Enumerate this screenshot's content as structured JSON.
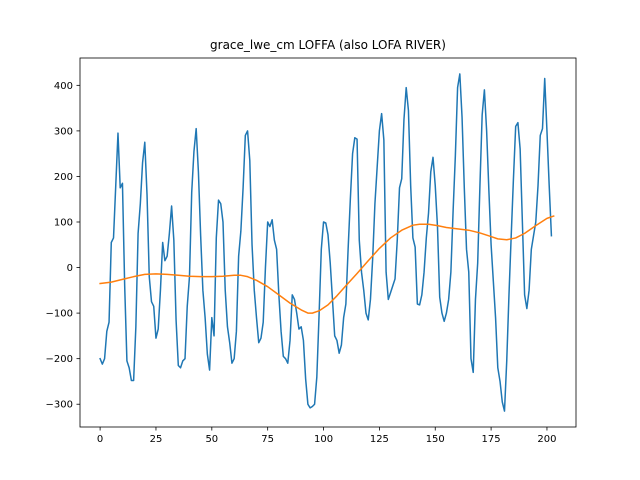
{
  "chart_data": {
    "type": "line",
    "title": "grace_lwe_cm LOFFA (also LOFA RIVER)",
    "xlabel": "",
    "ylabel": "",
    "xlim": [
      -9,
      213
    ],
    "ylim": [
      -350,
      460
    ],
    "xticks": [
      0,
      25,
      50,
      75,
      100,
      125,
      150,
      175,
      200
    ],
    "yticks": [
      -300,
      -200,
      -100,
      0,
      100,
      200,
      300,
      400
    ],
    "grid": false,
    "legend": "none",
    "series": [
      {
        "color": "#1f77b4",
        "points": [
          [
            0,
            -200
          ],
          [
            1,
            -212
          ],
          [
            2,
            -200
          ],
          [
            3,
            -140
          ],
          [
            4,
            -120
          ],
          [
            5,
            55
          ],
          [
            6,
            65
          ],
          [
            7,
            180
          ],
          [
            8,
            295
          ],
          [
            9,
            175
          ],
          [
            10,
            185
          ],
          [
            11,
            -40
          ],
          [
            12,
            -205
          ],
          [
            13,
            -220
          ],
          [
            14,
            -248
          ],
          [
            15,
            -248
          ],
          [
            16,
            -130
          ],
          [
            17,
            75
          ],
          [
            18,
            140
          ],
          [
            19,
            230
          ],
          [
            20,
            275
          ],
          [
            21,
            160
          ],
          [
            22,
            -20
          ],
          [
            23,
            -75
          ],
          [
            24,
            -85
          ],
          [
            25,
            -155
          ],
          [
            26,
            -135
          ],
          [
            27,
            -50
          ],
          [
            28,
            55
          ],
          [
            29,
            15
          ],
          [
            30,
            25
          ],
          [
            31,
            75
          ],
          [
            32,
            135
          ],
          [
            33,
            60
          ],
          [
            34,
            -115
          ],
          [
            35,
            -215
          ],
          [
            36,
            -220
          ],
          [
            37,
            -205
          ],
          [
            38,
            -200
          ],
          [
            39,
            -85
          ],
          [
            40,
            -20
          ],
          [
            41,
            165
          ],
          [
            42,
            255
          ],
          [
            43,
            305
          ],
          [
            44,
            210
          ],
          [
            45,
            70
          ],
          [
            46,
            -50
          ],
          [
            47,
            -110
          ],
          [
            48,
            -190
          ],
          [
            49,
            -225
          ],
          [
            50,
            -110
          ],
          [
            51,
            -150
          ],
          [
            52,
            65
          ],
          [
            53,
            148
          ],
          [
            54,
            140
          ],
          [
            55,
            100
          ],
          [
            56,
            -50
          ],
          [
            57,
            -130
          ],
          [
            58,
            -165
          ],
          [
            59,
            -210
          ],
          [
            60,
            -200
          ],
          [
            61,
            -140
          ],
          [
            62,
            25
          ],
          [
            63,
            80
          ],
          [
            64,
            175
          ],
          [
            65,
            290
          ],
          [
            66,
            300
          ],
          [
            67,
            235
          ],
          [
            68,
            50
          ],
          [
            69,
            -50
          ],
          [
            70,
            -110
          ],
          [
            71,
            -165
          ],
          [
            72,
            -155
          ],
          [
            73,
            -120
          ],
          [
            74,
            0
          ],
          [
            75,
            100
          ],
          [
            76,
            90
          ],
          [
            77,
            105
          ],
          [
            78,
            60
          ],
          [
            79,
            40
          ],
          [
            80,
            -60
          ],
          [
            81,
            -140
          ],
          [
            82,
            -195
          ],
          [
            83,
            -200
          ],
          [
            84,
            -210
          ],
          [
            85,
            -160
          ],
          [
            86,
            -60
          ],
          [
            87,
            -70
          ],
          [
            88,
            -100
          ],
          [
            89,
            -135
          ],
          [
            90,
            -130
          ],
          [
            91,
            -160
          ],
          [
            92,
            -245
          ],
          [
            93,
            -300
          ],
          [
            94,
            -308
          ],
          [
            95,
            -305
          ],
          [
            96,
            -300
          ],
          [
            97,
            -240
          ],
          [
            98,
            -105
          ],
          [
            99,
            40
          ],
          [
            100,
            100
          ],
          [
            101,
            98
          ],
          [
            102,
            72
          ],
          [
            103,
            10
          ],
          [
            104,
            -70
          ],
          [
            105,
            -150
          ],
          [
            106,
            -160
          ],
          [
            107,
            -188
          ],
          [
            108,
            -170
          ],
          [
            109,
            -110
          ],
          [
            110,
            -80
          ],
          [
            111,
            40
          ],
          [
            112,
            150
          ],
          [
            113,
            250
          ],
          [
            114,
            285
          ],
          [
            115,
            282
          ],
          [
            116,
            60
          ],
          [
            117,
            -10
          ],
          [
            118,
            -50
          ],
          [
            119,
            -100
          ],
          [
            120,
            -115
          ],
          [
            121,
            -70
          ],
          [
            122,
            20
          ],
          [
            123,
            140
          ],
          [
            124,
            220
          ],
          [
            125,
            300
          ],
          [
            126,
            338
          ],
          [
            127,
            280
          ],
          [
            128,
            -10
          ],
          [
            129,
            -70
          ],
          [
            130,
            -55
          ],
          [
            131,
            -40
          ],
          [
            132,
            -25
          ],
          [
            133,
            60
          ],
          [
            134,
            175
          ],
          [
            135,
            195
          ],
          [
            136,
            325
          ],
          [
            137,
            395
          ],
          [
            138,
            345
          ],
          [
            139,
            180
          ],
          [
            140,
            65
          ],
          [
            141,
            45
          ],
          [
            142,
            -80
          ],
          [
            143,
            -82
          ],
          [
            144,
            -60
          ],
          [
            145,
            -10
          ],
          [
            146,
            65
          ],
          [
            147,
            120
          ],
          [
            148,
            210
          ],
          [
            149,
            242
          ],
          [
            150,
            180
          ],
          [
            151,
            90
          ],
          [
            152,
            -65
          ],
          [
            153,
            -100
          ],
          [
            154,
            -118
          ],
          [
            155,
            -100
          ],
          [
            156,
            -70
          ],
          [
            157,
            -10
          ],
          [
            158,
            125
          ],
          [
            159,
            245
          ],
          [
            160,
            395
          ],
          [
            161,
            425
          ],
          [
            162,
            330
          ],
          [
            163,
            175
          ],
          [
            164,
            40
          ],
          [
            165,
            -10
          ],
          [
            166,
            -200
          ],
          [
            167,
            -230
          ],
          [
            168,
            -70
          ],
          [
            169,
            10
          ],
          [
            170,
            180
          ],
          [
            171,
            335
          ],
          [
            172,
            390
          ],
          [
            173,
            300
          ],
          [
            174,
            170
          ],
          [
            175,
            50
          ],
          [
            176,
            -30
          ],
          [
            177,
            -110
          ],
          [
            178,
            -220
          ],
          [
            179,
            -250
          ],
          [
            180,
            -295
          ],
          [
            181,
            -315
          ],
          [
            182,
            -205
          ],
          [
            183,
            -60
          ],
          [
            184,
            70
          ],
          [
            185,
            195
          ],
          [
            186,
            310
          ],
          [
            187,
            318
          ],
          [
            188,
            260
          ],
          [
            189,
            100
          ],
          [
            190,
            -60
          ],
          [
            191,
            -90
          ],
          [
            192,
            -50
          ],
          [
            193,
            40
          ],
          [
            194,
            70
          ],
          [
            195,
            100
          ],
          [
            196,
            180
          ],
          [
            197,
            290
          ],
          [
            198,
            305
          ],
          [
            199,
            415
          ],
          [
            200,
            300
          ],
          [
            201,
            180
          ],
          [
            202,
            70
          ]
        ]
      },
      {
        "color": "#ff7f0e",
        "points": [
          [
            0,
            -35
          ],
          [
            5,
            -32
          ],
          [
            10,
            -26
          ],
          [
            15,
            -20
          ],
          [
            20,
            -15
          ],
          [
            25,
            -14
          ],
          [
            30,
            -15
          ],
          [
            35,
            -17
          ],
          [
            40,
            -19
          ],
          [
            45,
            -20
          ],
          [
            50,
            -20
          ],
          [
            55,
            -19
          ],
          [
            60,
            -17
          ],
          [
            63,
            -17
          ],
          [
            66,
            -20
          ],
          [
            70,
            -28
          ],
          [
            75,
            -42
          ],
          [
            80,
            -60
          ],
          [
            85,
            -78
          ],
          [
            90,
            -93
          ],
          [
            93,
            -100
          ],
          [
            95,
            -100
          ],
          [
            98,
            -95
          ],
          [
            102,
            -82
          ],
          [
            106,
            -62
          ],
          [
            110,
            -40
          ],
          [
            115,
            -13
          ],
          [
            120,
            15
          ],
          [
            125,
            42
          ],
          [
            130,
            65
          ],
          [
            135,
            82
          ],
          [
            140,
            93
          ],
          [
            143,
            95
          ],
          [
            147,
            95
          ],
          [
            151,
            92
          ],
          [
            155,
            88
          ],
          [
            160,
            85
          ],
          [
            165,
            82
          ],
          [
            170,
            76
          ],
          [
            175,
            68
          ],
          [
            178,
            63
          ],
          [
            182,
            61
          ],
          [
            186,
            65
          ],
          [
            190,
            75
          ],
          [
            195,
            92
          ],
          [
            200,
            108
          ],
          [
            203,
            113
          ]
        ]
      }
    ]
  }
}
